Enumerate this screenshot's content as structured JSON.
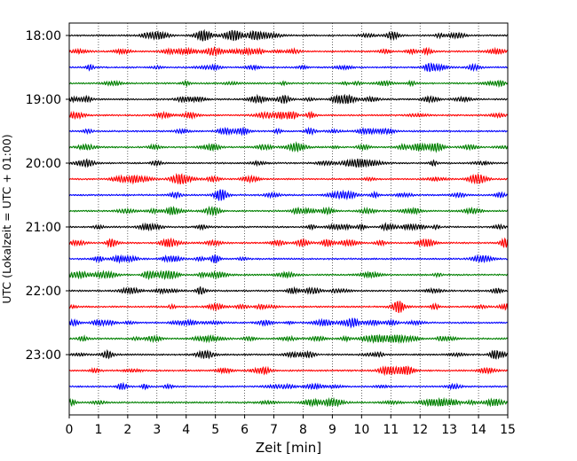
{
  "chart_data": {
    "type": "line",
    "title": "",
    "xlabel": "Zeit  [min]",
    "ylabel": "UTC (Lokalzeit = UTC + 01:00)",
    "xlim": [
      0,
      15
    ],
    "x_ticks": [
      0,
      1,
      2,
      3,
      4,
      5,
      6,
      7,
      8,
      9,
      10,
      11,
      12,
      13,
      14,
      15
    ],
    "y_tick_labels": [
      "18:00",
      "19:00",
      "20:00",
      "21:00",
      "22:00",
      "23:00"
    ],
    "trace_interval_min": 15,
    "trace_color_cycle": [
      "#000000",
      "#ff0000",
      "#0000ff",
      "#008000"
    ],
    "traces": [
      {
        "start": "18:00"
      },
      {
        "start": "18:15"
      },
      {
        "start": "18:30"
      },
      {
        "start": "18:45"
      },
      {
        "start": "19:00"
      },
      {
        "start": "19:15"
      },
      {
        "start": "19:30"
      },
      {
        "start": "19:45"
      },
      {
        "start": "20:00"
      },
      {
        "start": "20:15"
      },
      {
        "start": "20:30"
      },
      {
        "start": "20:45"
      },
      {
        "start": "21:00"
      },
      {
        "start": "21:15"
      },
      {
        "start": "21:30"
      },
      {
        "start": "21:45"
      },
      {
        "start": "22:00"
      },
      {
        "start": "22:15"
      },
      {
        "start": "22:30"
      },
      {
        "start": "22:45"
      },
      {
        "start": "23:00"
      },
      {
        "start": "23:15"
      },
      {
        "start": "23:30"
      },
      {
        "start": "23:45"
      }
    ],
    "grid": "vertical dotted at each minute",
    "legend": "none"
  }
}
